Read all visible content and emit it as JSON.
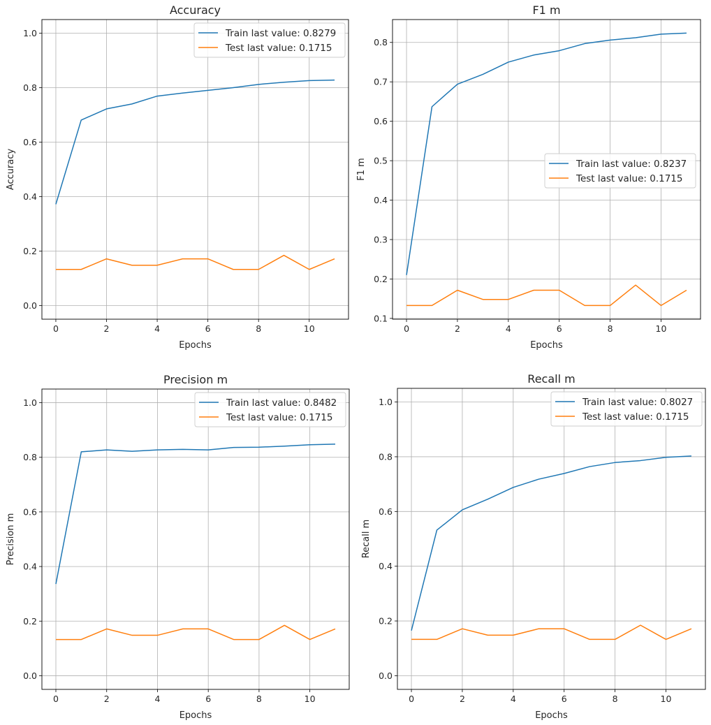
{
  "colors": {
    "train": "#1f77b4",
    "test": "#ff7f0e",
    "grid": "#b0b0b0",
    "axes": "#000000"
  },
  "chart_data": [
    {
      "type": "line",
      "title": "Accuracy",
      "xlabel": "Epochs",
      "ylabel": "Accuracy",
      "x": [
        0,
        1,
        2,
        3,
        4,
        5,
        6,
        7,
        8,
        9,
        10,
        11
      ],
      "xticks": [
        0,
        2,
        4,
        6,
        8,
        10
      ],
      "xlim": [
        -0.55,
        11.55
      ],
      "ylim": [
        -0.05,
        1.05
      ],
      "yticks": [
        0.0,
        0.2,
        0.4,
        0.6,
        0.8,
        1.0
      ],
      "ytick_labels": [
        "0.0",
        "0.2",
        "0.4",
        "0.6",
        "0.8",
        "1.0"
      ],
      "grid": true,
      "legend_position": "upper-right",
      "series": [
        {
          "name": "Train last value: 0.8279",
          "values": [
            0.372,
            0.681,
            0.722,
            0.74,
            0.769,
            0.78,
            0.79,
            0.8,
            0.812,
            0.82,
            0.826,
            0.8279
          ]
        },
        {
          "name": "Test last value: 0.1715",
          "values": [
            0.1327,
            0.1327,
            0.1715,
            0.1481,
            0.1481,
            0.1715,
            0.1715,
            0.1327,
            0.1327,
            0.1845,
            0.1327,
            0.1715
          ]
        }
      ]
    },
    {
      "type": "line",
      "title": "F1 m",
      "xlabel": "Epochs",
      "ylabel": "F1 m",
      "x": [
        0,
        1,
        2,
        3,
        4,
        5,
        6,
        7,
        8,
        9,
        10,
        11
      ],
      "xticks": [
        0,
        2,
        4,
        6,
        8,
        10
      ],
      "xlim": [
        -0.55,
        11.55
      ],
      "ylim": [
        0.098,
        0.858
      ],
      "yticks": [
        0.1,
        0.2,
        0.3,
        0.4,
        0.5,
        0.6,
        0.7,
        0.8
      ],
      "ytick_labels": [
        "0.1",
        "0.2",
        "0.3",
        "0.4",
        "0.5",
        "0.6",
        "0.7",
        "0.8"
      ],
      "grid": true,
      "legend_position": "center-right",
      "series": [
        {
          "name": "Train last value: 0.8237",
          "values": [
            0.21,
            0.637,
            0.694,
            0.719,
            0.75,
            0.768,
            0.779,
            0.797,
            0.806,
            0.812,
            0.821,
            0.8237
          ]
        },
        {
          "name": "Test last value: 0.1715",
          "values": [
            0.1327,
            0.1327,
            0.1715,
            0.1481,
            0.1481,
            0.1715,
            0.1715,
            0.1327,
            0.1327,
            0.1845,
            0.1327,
            0.1715
          ]
        }
      ]
    },
    {
      "type": "line",
      "title": "Precision m",
      "xlabel": "Epochs",
      "ylabel": "Precision m",
      "x": [
        0,
        1,
        2,
        3,
        4,
        5,
        6,
        7,
        8,
        9,
        10,
        11
      ],
      "xticks": [
        0,
        2,
        4,
        6,
        8,
        10
      ],
      "xlim": [
        -0.55,
        11.55
      ],
      "ylim": [
        -0.05,
        1.05
      ],
      "yticks": [
        0.0,
        0.2,
        0.4,
        0.6,
        0.8,
        1.0
      ],
      "ytick_labels": [
        "0.0",
        "0.2",
        "0.4",
        "0.6",
        "0.8",
        "1.0"
      ],
      "grid": true,
      "legend_position": "upper-right",
      "series": [
        {
          "name": "Train last value: 0.8482",
          "values": [
            0.336,
            0.82,
            0.827,
            0.822,
            0.827,
            0.829,
            0.827,
            0.836,
            0.837,
            0.841,
            0.846,
            0.8482
          ]
        },
        {
          "name": "Test last value: 0.1715",
          "values": [
            0.1327,
            0.1327,
            0.1715,
            0.1481,
            0.1481,
            0.1715,
            0.1715,
            0.1327,
            0.1327,
            0.1845,
            0.1327,
            0.1715
          ]
        }
      ]
    },
    {
      "type": "line",
      "title": "Recall m",
      "xlabel": "Epochs",
      "ylabel": "Recall m",
      "x": [
        0,
        1,
        2,
        3,
        4,
        5,
        6,
        7,
        8,
        9,
        10,
        11
      ],
      "xticks": [
        0,
        2,
        4,
        6,
        8,
        10
      ],
      "xlim": [
        -0.55,
        11.55
      ],
      "ylim": [
        -0.05,
        1.05
      ],
      "yticks": [
        0.0,
        0.2,
        0.4,
        0.6,
        0.8,
        1.0
      ],
      "ytick_labels": [
        "0.0",
        "0.2",
        "0.4",
        "0.6",
        "0.8",
        "1.0"
      ],
      "grid": true,
      "legend_position": "upper-right",
      "series": [
        {
          "name": "Train last value: 0.8027",
          "values": [
            0.165,
            0.532,
            0.606,
            0.645,
            0.688,
            0.718,
            0.739,
            0.764,
            0.779,
            0.786,
            0.798,
            0.8027
          ]
        },
        {
          "name": "Test last value: 0.1715",
          "values": [
            0.1327,
            0.1327,
            0.1715,
            0.1481,
            0.1481,
            0.1715,
            0.1715,
            0.1327,
            0.1327,
            0.1845,
            0.1327,
            0.1715
          ]
        }
      ]
    }
  ]
}
